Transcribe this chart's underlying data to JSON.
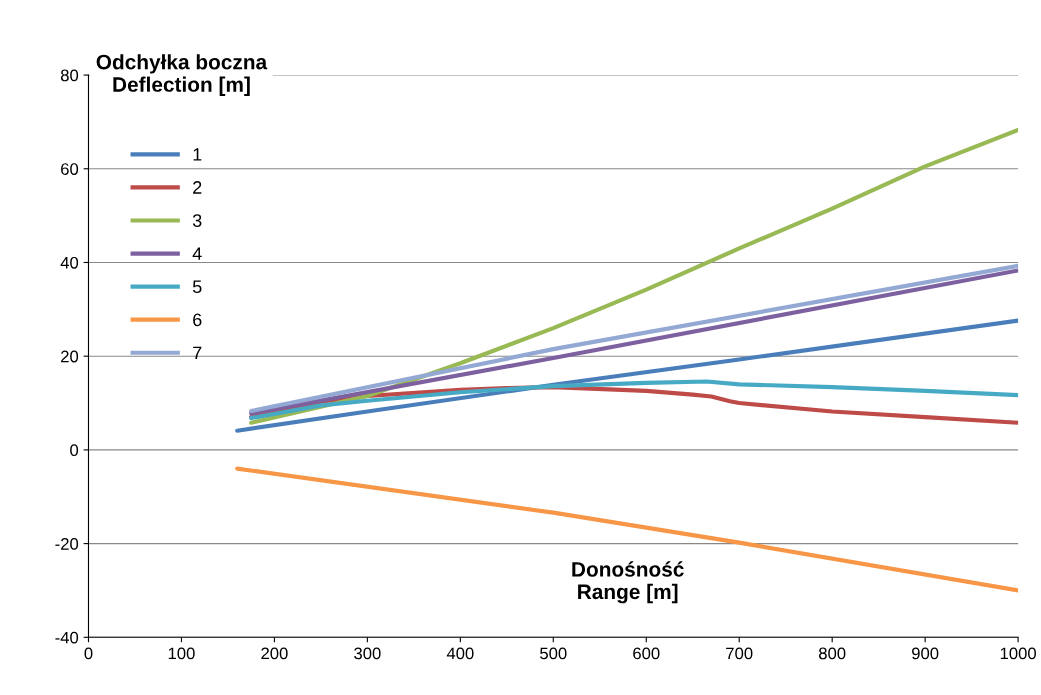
{
  "chart_data": {
    "type": "line",
    "xlabel": "Donośność\nRange [m]",
    "ylabel": "Odchyłka boczna\nDeflection [m]",
    "xlim": [
      0,
      1000
    ],
    "xticks": [
      0,
      100,
      200,
      300,
      400,
      500,
      600,
      700,
      800,
      900,
      1000
    ],
    "ylim": [
      -40,
      80
    ],
    "yticks": [
      -40,
      -20,
      0,
      20,
      40,
      60,
      80
    ],
    "grid": "y",
    "legend": "top left",
    "marker": "none",
    "line_style": "solid",
    "series": [
      {
        "name": "1",
        "color": "#4a7ebb",
        "x": [
          160,
          300,
          500,
          700,
          1000
        ],
        "values": [
          4.1,
          8.2,
          13.9,
          19.3,
          27.6
        ]
      },
      {
        "name": "2",
        "color": "#be4b48",
        "x": [
          175,
          250,
          300,
          400,
          450,
          500,
          600,
          650,
          670,
          690,
          700,
          800,
          900,
          1000
        ],
        "values": [
          7.0,
          10.3,
          11.5,
          12.8,
          13.2,
          13.4,
          12.6,
          11.8,
          11.4,
          10.4,
          10.0,
          8.2,
          7.0,
          5.8
        ]
      },
      {
        "name": "3",
        "color": "#98b954",
        "x": [
          175,
          300,
          400,
          500,
          600,
          700,
          800,
          900,
          1000
        ],
        "values": [
          5.8,
          11.5,
          18.5,
          26.0,
          34.2,
          43.0,
          51.5,
          60.5,
          68.3
        ]
      },
      {
        "name": "4",
        "color": "#7d60a0",
        "x": [
          175,
          500,
          1000
        ],
        "values": [
          7.8,
          19.6,
          38.3
        ]
      },
      {
        "name": "5",
        "color": "#46aac5",
        "x": [
          175,
          250,
          300,
          400,
          500,
          600,
          665,
          700,
          800,
          900,
          1000
        ],
        "values": [
          6.8,
          9.5,
          10.5,
          12.3,
          13.6,
          14.3,
          14.6,
          14.0,
          13.4,
          12.6,
          11.7
        ]
      },
      {
        "name": "6",
        "color": "#f79646",
        "x": [
          160,
          500,
          700,
          1000
        ],
        "values": [
          -4.0,
          -13.4,
          -19.8,
          -30.0
        ]
      },
      {
        "name": "7",
        "color": "#93a9d4",
        "x": [
          175,
          500,
          1000
        ],
        "values": [
          8.3,
          21.5,
          39.3
        ]
      }
    ]
  }
}
